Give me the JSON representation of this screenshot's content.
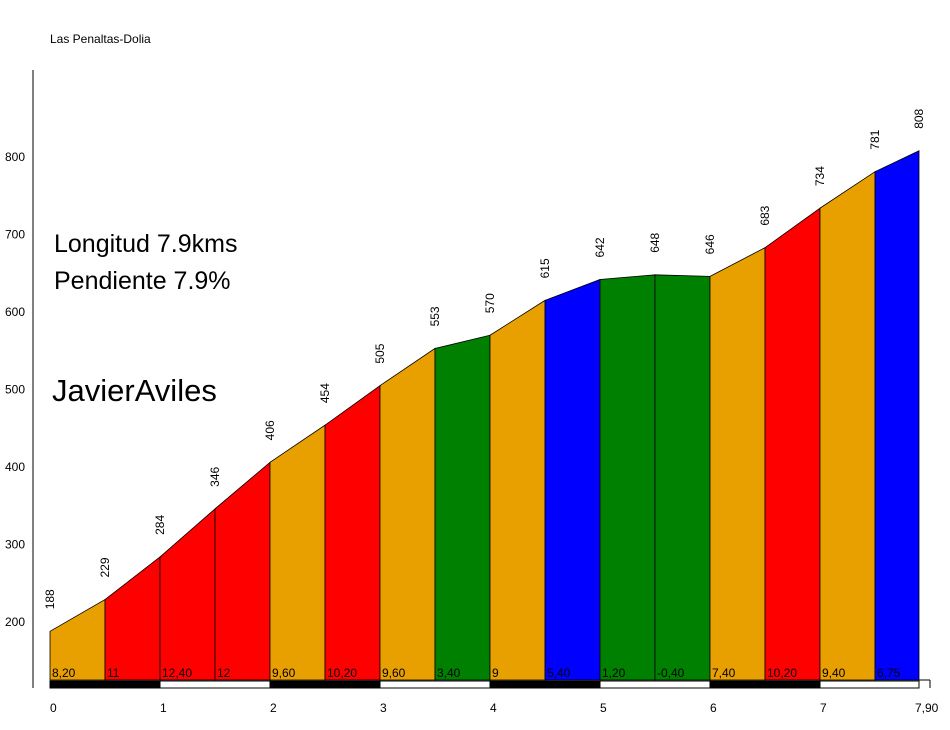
{
  "chart_data": {
    "type": "area",
    "title": "Las Penaltas-Dolia",
    "annotations": [
      "Longitud 7.9kms",
      "Pendiente 7.9%",
      "JavierAviles"
    ],
    "x": [
      0,
      0.5,
      1,
      1.5,
      2,
      2.5,
      3,
      3.5,
      4,
      4.5,
      5,
      5.5,
      6,
      6.5,
      7,
      7.5,
      7.9
    ],
    "elevations": [
      188,
      229,
      284,
      346,
      406,
      454,
      505,
      553,
      570,
      615,
      642,
      648,
      646,
      683,
      734,
      781,
      808
    ],
    "segment_gradients": [
      "8,20",
      "11",
      "12,40",
      "12",
      "9,60",
      "10,20",
      "9,60",
      "3,40",
      "9",
      "5,40",
      "1,20",
      "-0,40",
      "7,40",
      "10,20",
      "9,40",
      "6,75"
    ],
    "segment_colors": [
      "#E8A000",
      "#FF0000",
      "#FF0000",
      "#FF0000",
      "#E8A000",
      "#FF0000",
      "#E8A000",
      "#008000",
      "#E8A000",
      "#0000FF",
      "#008000",
      "#008000",
      "#E8A000",
      "#FF0000",
      "#E8A000",
      "#0000FF"
    ],
    "x_ticks": [
      "0",
      "1",
      "2",
      "3",
      "4",
      "5",
      "6",
      "7",
      "7,90"
    ],
    "y_ticks": [
      200,
      300,
      400,
      500,
      600,
      700,
      800
    ],
    "xlim": [
      0,
      7.9
    ],
    "ylim": [
      140,
      900
    ],
    "grid": false
  }
}
